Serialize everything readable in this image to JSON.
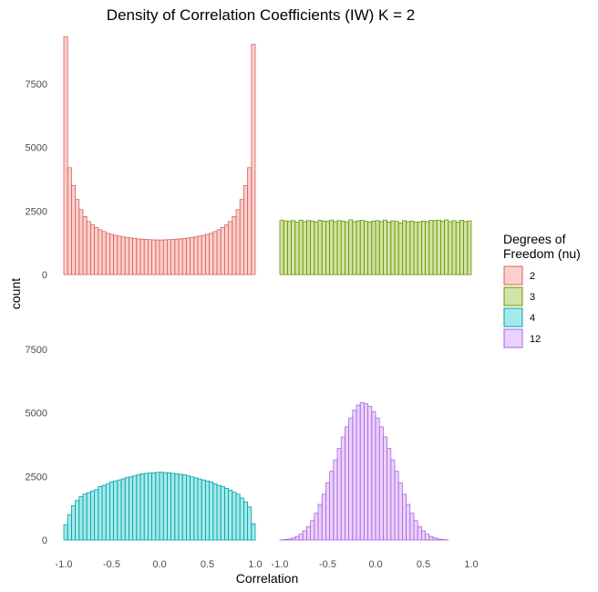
{
  "chart_data": {
    "type": "bar",
    "title": "Density of Correlation Coefficients (IW) K = 2",
    "xlabel": "Correlation",
    "ylabel": "count",
    "xlim": [
      -1.0,
      1.0
    ],
    "ylim": [
      0,
      9500
    ],
    "x_ticks": [
      "-1.0",
      "-0.5",
      "0.0",
      "0.5",
      "1.0"
    ],
    "y_ticks": [
      "0",
      "2500",
      "5000",
      "7500"
    ],
    "grid": false,
    "facets": "2x2",
    "legend": {
      "title": "Degrees of\nFreedom (nu)",
      "title_lines": [
        "Degrees of",
        "Freedom (nu)"
      ],
      "placement": "right"
    },
    "bins": 50,
    "series": [
      {
        "name": "2",
        "fill": "#F8766D",
        "values": [
          9350,
          4200,
          3500,
          2950,
          2550,
          2280,
          2080,
          1950,
          1850,
          1760,
          1690,
          1620,
          1580,
          1540,
          1510,
          1480,
          1460,
          1440,
          1420,
          1400,
          1390,
          1380,
          1370,
          1365,
          1360,
          1360,
          1365,
          1370,
          1380,
          1390,
          1400,
          1420,
          1440,
          1460,
          1480,
          1510,
          1540,
          1580,
          1620,
          1690,
          1760,
          1850,
          1950,
          2080,
          2280,
          2550,
          2950,
          3500,
          4200,
          9050
        ]
      },
      {
        "name": "3",
        "fill": "#7CAE00",
        "values": [
          2130,
          2110,
          2090,
          2120,
          2060,
          2140,
          2080,
          2120,
          2100,
          2070,
          2130,
          2100,
          2090,
          2140,
          2080,
          2120,
          2100,
          2060,
          2150,
          2080,
          2110,
          2130,
          2090,
          2070,
          2100,
          2120,
          2080,
          2140,
          2060,
          2110,
          2090,
          2030,
          2120,
          2080,
          2100,
          2060,
          2070,
          2100,
          2080,
          2130,
          2120,
          2140,
          2100,
          2150,
          2080,
          2120,
          2060,
          2130,
          2080,
          2110
        ]
      },
      {
        "name": "4",
        "fill": "#00BFC4",
        "values": [
          600,
          1000,
          1350,
          1550,
          1700,
          1800,
          1860,
          1920,
          1980,
          2100,
          2150,
          2200,
          2280,
          2320,
          2360,
          2400,
          2450,
          2480,
          2520,
          2560,
          2600,
          2620,
          2630,
          2640,
          2660,
          2660,
          2650,
          2640,
          2620,
          2600,
          2580,
          2560,
          2520,
          2480,
          2440,
          2400,
          2360,
          2320,
          2280,
          2210,
          2150,
          2100,
          2030,
          1960,
          1880,
          1800,
          1650,
          1500,
          1300,
          640
        ]
      },
      {
        "name": "12",
        "fill": "#C77CFF",
        "values": [
          5,
          20,
          40,
          80,
          140,
          230,
          360,
          530,
          760,
          1050,
          1400,
          1800,
          2250,
          2700,
          3150,
          3600,
          4050,
          4450,
          4800,
          5100,
          5300,
          5400,
          5350,
          5250,
          5050,
          4800,
          4450,
          4050,
          3600,
          3150,
          2700,
          2250,
          1800,
          1400,
          1050,
          760,
          530,
          360,
          230,
          140,
          80,
          40,
          20,
          5,
          0,
          0,
          0,
          0,
          0,
          0
        ]
      }
    ]
  }
}
